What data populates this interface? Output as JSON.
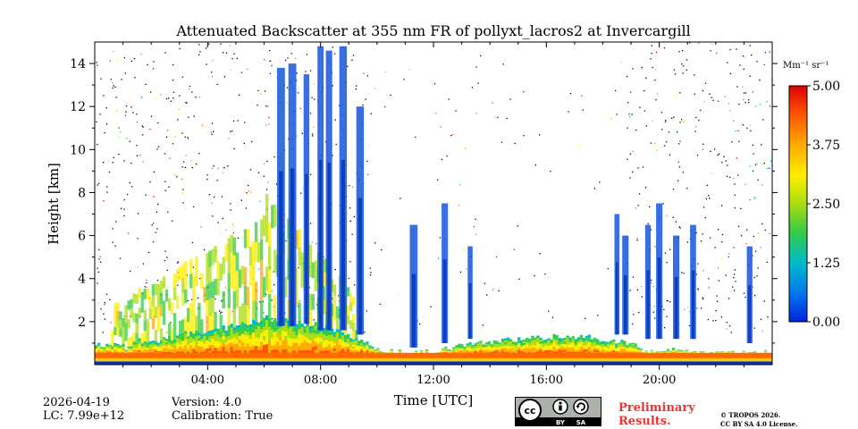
{
  "chart_data": {
    "type": "heatmap",
    "title": "Attenuated Backscatter at 355 nm FR of pollyxt_lacros2 at Invercargill",
    "xlabel": "Time [UTC]",
    "ylabel": "Height [km]",
    "xlim_hours": [
      0,
      24
    ],
    "ylim_km": [
      0,
      15
    ],
    "x_ticks": [
      {
        "hour": 4,
        "label": "04:00"
      },
      {
        "hour": 8,
        "label": "08:00"
      },
      {
        "hour": 12,
        "label": "12:00"
      },
      {
        "hour": 16,
        "label": "16:00"
      },
      {
        "hour": 20,
        "label": "20:00"
      }
    ],
    "y_ticks": [
      {
        "value": 2,
        "label": "2"
      },
      {
        "value": 4,
        "label": "4"
      },
      {
        "value": 6,
        "label": "6"
      },
      {
        "value": 8,
        "label": "8"
      },
      {
        "value": 10,
        "label": "10"
      },
      {
        "value": 12,
        "label": "12"
      },
      {
        "value": 14,
        "label": "14"
      }
    ],
    "colorbar": {
      "unit_label": "Mm⁻¹ sr⁻¹",
      "range": [
        0,
        5
      ],
      "ticks": [
        {
          "value": 0,
          "label": "0.00"
        },
        {
          "value": 1.25,
          "label": "1.25"
        },
        {
          "value": 2.5,
          "label": "2.50"
        },
        {
          "value": 3.75,
          "label": "3.75"
        },
        {
          "value": 5,
          "label": "5.00"
        }
      ],
      "colormap": [
        "#0022dd",
        "#0077ee",
        "#00bbcc",
        "#33cc44",
        "#aadd11",
        "#ffee00",
        "#ffaa00",
        "#ff5500",
        "#dd0000"
      ]
    },
    "boundary_layer_top_km": [
      [
        0,
        0.9
      ],
      [
        0.5,
        1.0
      ],
      [
        1,
        0.8
      ],
      [
        1.5,
        1.1
      ],
      [
        2,
        1.0
      ],
      [
        3,
        1.4
      ],
      [
        4,
        1.6
      ],
      [
        5,
        1.8
      ],
      [
        6,
        2.2
      ],
      [
        7,
        2.0
      ],
      [
        8,
        1.8
      ],
      [
        9,
        1.4
      ],
      [
        9.5,
        1.0
      ],
      [
        10,
        0.7
      ],
      [
        11,
        0.5
      ],
      [
        12,
        0.6
      ],
      [
        13,
        0.9
      ],
      [
        14,
        1.0
      ],
      [
        15,
        1.2
      ],
      [
        16,
        1.3
      ],
      [
        17,
        1.3
      ],
      [
        18,
        1.2
      ],
      [
        19,
        1.0
      ],
      [
        19.5,
        0.6
      ],
      [
        20,
        0.7
      ],
      [
        21,
        0.6
      ],
      [
        22,
        0.5
      ],
      [
        22.5,
        0.6
      ],
      [
        23,
        0.5
      ],
      [
        24,
        0.6
      ]
    ],
    "cloud_columns": [
      {
        "hour": 6.6,
        "top_km": 13.8,
        "base_km": 1.8
      },
      {
        "hour": 7.0,
        "top_km": 14.0,
        "base_km": 1.8
      },
      {
        "hour": 7.5,
        "top_km": 13.5,
        "base_km": 1.9
      },
      {
        "hour": 8.0,
        "top_km": 14.8,
        "base_km": 1.6
      },
      {
        "hour": 8.3,
        "top_km": 14.6,
        "base_km": 1.6
      },
      {
        "hour": 8.8,
        "top_km": 14.8,
        "base_km": 1.6
      },
      {
        "hour": 9.4,
        "top_km": 12.0,
        "base_km": 1.4
      },
      {
        "hour": 11.3,
        "top_km": 6.5,
        "base_km": 0.8
      },
      {
        "hour": 12.4,
        "top_km": 7.5,
        "base_km": 1.0
      },
      {
        "hour": 13.3,
        "top_km": 5.5,
        "base_km": 1.2
      },
      {
        "hour": 18.5,
        "top_km": 7.0,
        "base_km": 1.4
      },
      {
        "hour": 18.8,
        "top_km": 6.0,
        "base_km": 1.4
      },
      {
        "hour": 19.6,
        "top_km": 6.5,
        "base_km": 1.2
      },
      {
        "hour": 20.0,
        "top_km": 7.5,
        "base_km": 1.2
      },
      {
        "hour": 20.6,
        "top_km": 6.0,
        "base_km": 1.2
      },
      {
        "hour": 21.2,
        "top_km": 6.5,
        "base_km": 1.2
      },
      {
        "hour": 23.2,
        "top_km": 5.5,
        "base_km": 1.0
      }
    ]
  },
  "footer": {
    "date": "2026-04-19",
    "lc": "LC: 7.99e+12",
    "version": "Version: 4.0",
    "calibration": "Calibration: True",
    "license_badge": {
      "by": "BY",
      "sa": "SA"
    },
    "preliminary_line1": "Preliminary",
    "preliminary_line2": "Results.",
    "copyright_line1": "© TROPOS 2026.",
    "copyright_line2": "CC BY SA 4.0 License."
  }
}
